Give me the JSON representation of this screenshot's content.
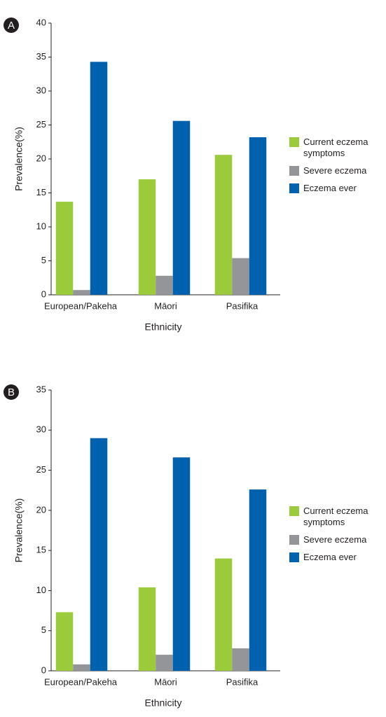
{
  "chart_data": [
    {
      "type": "bar",
      "panel": "A",
      "x_label": "Ethnicity",
      "y_label": "Prevalence(%)",
      "categories": [
        "European/Pakeha",
        "Māori",
        "Pasifika"
      ],
      "series": [
        {
          "name": "Current eczema symptoms",
          "color": "#9bcb3b",
          "values": [
            13.7,
            17.0,
            20.6
          ]
        },
        {
          "name": "Severe eczema",
          "color": "#939598",
          "values": [
            0.7,
            2.8,
            5.4
          ]
        },
        {
          "name": "Eczema ever",
          "color": "#0061af",
          "values": [
            34.3,
            25.6,
            23.2
          ]
        }
      ],
      "ylim": [
        0,
        40
      ],
      "yticks": [
        0,
        5,
        10,
        15,
        20,
        25,
        30,
        35,
        40
      ],
      "legend": "right"
    },
    {
      "type": "bar",
      "panel": "B",
      "x_label": "Ethnicity",
      "y_label": "Prevalence(%)",
      "categories": [
        "European/Pakeha",
        "Māori",
        "Pasifika"
      ],
      "series": [
        {
          "name": "Current eczema symptoms",
          "color": "#9bcb3b",
          "values": [
            7.3,
            10.4,
            14.0
          ]
        },
        {
          "name": "Severe eczema",
          "color": "#939598",
          "values": [
            0.8,
            2.0,
            2.8
          ]
        },
        {
          "name": "Eczema ever",
          "color": "#0061af",
          "values": [
            29.0,
            26.6,
            22.6
          ]
        }
      ],
      "ylim": [
        0,
        35
      ],
      "yticks": [
        0,
        5,
        10,
        15,
        20,
        25,
        30,
        35
      ],
      "legend": "right"
    }
  ]
}
